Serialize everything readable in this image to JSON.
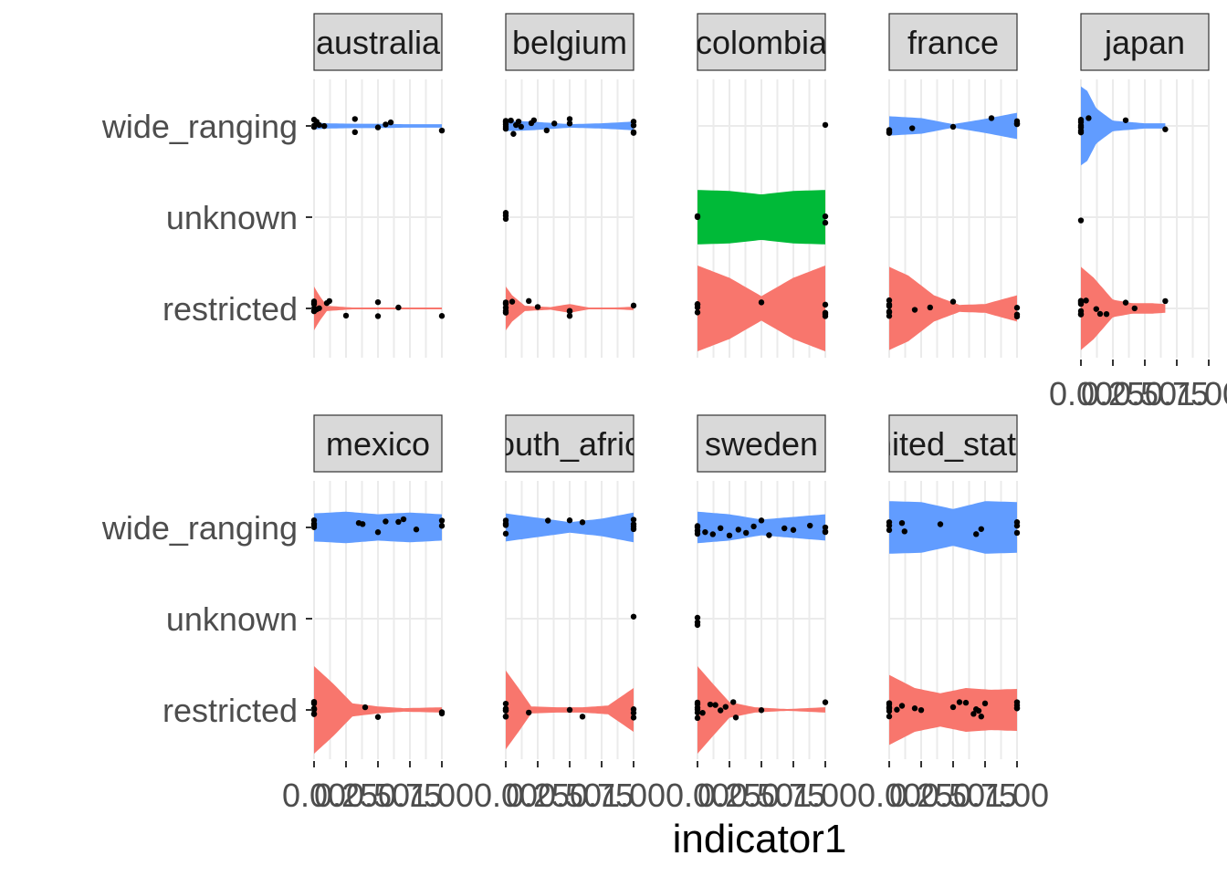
{
  "chart_data": {
    "type": "violin",
    "xlabel": "indicator1",
    "ylabel": "",
    "xlim": [
      0,
      1
    ],
    "x_ticks": [
      "0.00",
      "0.25",
      "0.50",
      "0.75",
      "1.00"
    ],
    "x_tick_values": [
      0,
      0.25,
      0.5,
      0.75,
      1
    ],
    "categories": [
      "wide_ranging",
      "unknown",
      "restricted"
    ],
    "colors": {
      "wide_ranging": "#619CFF",
      "unknown": "#00BA38",
      "restricted": "#F8766D"
    },
    "panels": [
      {
        "name": "australia",
        "wide_ranging": {
          "points": [
            0,
            0,
            0,
            0.02,
            0.04,
            0.08,
            0.32,
            0.32,
            0.5,
            0.56,
            0.6,
            1.0
          ],
          "profile": [
            [
              0,
              0.08
            ],
            [
              0.1,
              0.06
            ],
            [
              0.3,
              0.05
            ],
            [
              0.5,
              0.05
            ],
            [
              0.7,
              0.04
            ],
            [
              1.0,
              0.04
            ]
          ]
        },
        "unknown": {
          "points": [],
          "profile": []
        },
        "restricted": {
          "points": [
            0,
            0,
            0,
            0,
            0,
            0,
            0.02,
            0.04,
            0.1,
            0.12,
            0.25,
            0.5,
            0.5,
            0.66,
            1.0
          ],
          "profile": [
            [
              0,
              0.5
            ],
            [
              0.04,
              0.3
            ],
            [
              0.1,
              0.06
            ],
            [
              0.3,
              0.02
            ],
            [
              0.5,
              0.02
            ],
            [
              0.7,
              0.02
            ],
            [
              1.0,
              0.02
            ]
          ]
        }
      },
      {
        "name": "belgium",
        "wide_ranging": {
          "points": [
            0,
            0,
            0,
            0,
            0,
            0.04,
            0.06,
            0.08,
            0.1,
            0.12,
            0.2,
            0.22,
            0.32,
            0.38,
            0.5,
            0.5,
            1.0,
            1.0,
            1.0,
            1.0
          ],
          "profile": [
            [
              0,
              0.12
            ],
            [
              0.2,
              0.1
            ],
            [
              0.5,
              0.04
            ],
            [
              0.75,
              0.06
            ],
            [
              1.0,
              0.1
            ]
          ]
        },
        "unknown": {
          "points": [
            0,
            0,
            0
          ],
          "profile": []
        },
        "restricted": {
          "points": [
            0,
            0,
            0,
            0,
            0,
            0.05,
            0.18,
            0.25,
            0.5,
            0.5,
            0.5,
            1.0
          ],
          "profile": [
            [
              0,
              0.5
            ],
            [
              0.05,
              0.3
            ],
            [
              0.15,
              0.06
            ],
            [
              0.35,
              0.03
            ],
            [
              0.5,
              0.1
            ],
            [
              0.65,
              0.02
            ],
            [
              0.85,
              0.02
            ],
            [
              1.0,
              0.04
            ]
          ]
        }
      },
      {
        "name": "colombia",
        "wide_ranging": {
          "points": [
            1.0
          ],
          "profile": []
        },
        "unknown": {
          "points": [
            0,
            0,
            1.0,
            1.0
          ],
          "profile": [
            [
              0,
              0.62
            ],
            [
              0.25,
              0.6
            ],
            [
              0.5,
              0.52
            ],
            [
              0.75,
              0.6
            ],
            [
              1.0,
              0.62
            ]
          ]
        },
        "restricted": {
          "points": [
            0,
            0,
            0,
            0,
            0.5,
            1.0,
            1.0,
            1.0,
            1.0
          ],
          "profile": [
            [
              0,
              0.98
            ],
            [
              0.25,
              0.7
            ],
            [
              0.5,
              0.28
            ],
            [
              0.75,
              0.7
            ],
            [
              1.0,
              0.98
            ]
          ]
        }
      },
      {
        "name": "france",
        "wide_ranging": {
          "points": [
            0,
            0,
            0,
            0.18,
            0.5,
            0.8,
            1.0,
            1.0,
            1.0,
            1.0
          ],
          "profile": [
            [
              0,
              0.22
            ],
            [
              0.25,
              0.18
            ],
            [
              0.5,
              0.04
            ],
            [
              0.75,
              0.16
            ],
            [
              1.0,
              0.3
            ]
          ]
        },
        "unknown": {
          "points": [],
          "profile": []
        },
        "restricted": {
          "points": [
            0,
            0,
            0,
            0,
            0,
            0,
            0.2,
            0.32,
            0.5,
            1.0,
            1.0,
            1.0
          ],
          "profile": [
            [
              0,
              0.95
            ],
            [
              0.15,
              0.75
            ],
            [
              0.35,
              0.3
            ],
            [
              0.55,
              0.08
            ],
            [
              0.75,
              0.1
            ],
            [
              1.0,
              0.3
            ]
          ]
        }
      },
      {
        "name": "japan",
        "wide_ranging": {
          "points": [
            0,
            0,
            0,
            0,
            0,
            0,
            0.06,
            0.35,
            0.66
          ],
          "profile": [
            [
              0,
              0.9
            ],
            [
              0.05,
              0.8
            ],
            [
              0.12,
              0.4
            ],
            [
              0.25,
              0.12
            ],
            [
              0.5,
              0.06
            ],
            [
              0.66,
              0.06
            ]
          ]
        },
        "unknown": {
          "points": [
            0
          ],
          "profile": []
        },
        "restricted": {
          "points": [
            0,
            0,
            0,
            0,
            0,
            0,
            0,
            0.04,
            0.12,
            0.15,
            0.2,
            0.35,
            0.42,
            0.66
          ],
          "profile": [
            [
              0,
              0.95
            ],
            [
              0.1,
              0.7
            ],
            [
              0.25,
              0.2
            ],
            [
              0.4,
              0.12
            ],
            [
              0.55,
              0.12
            ],
            [
              0.66,
              0.1
            ]
          ]
        }
      },
      {
        "name": "mexico",
        "wide_ranging": {
          "points": [
            0,
            0,
            0,
            0,
            0.35,
            0.38,
            0.5,
            0.56,
            0.66,
            0.7,
            0.8,
            1.0,
            1.0
          ],
          "profile": [
            [
              0,
              0.32
            ],
            [
              0.25,
              0.36
            ],
            [
              0.5,
              0.3
            ],
            [
              0.75,
              0.34
            ],
            [
              1.0,
              0.3
            ]
          ]
        },
        "unknown": {
          "points": [],
          "profile": []
        },
        "restricted": {
          "points": [
            0,
            0,
            0,
            0,
            0,
            0,
            0,
            0.4,
            0.5,
            1.0,
            1.0
          ],
          "profile": [
            [
              0,
              1.0
            ],
            [
              0.15,
              0.6
            ],
            [
              0.3,
              0.15
            ],
            [
              0.5,
              0.08
            ],
            [
              0.7,
              0.04
            ],
            [
              1.0,
              0.06
            ]
          ]
        }
      },
      {
        "name": "south_africa",
        "wide_ranging": {
          "points": [
            0,
            0,
            0,
            0,
            0.33,
            0.5,
            0.6,
            1.0,
            1.0,
            1.0,
            1.0
          ],
          "profile": [
            [
              0,
              0.32
            ],
            [
              0.25,
              0.22
            ],
            [
              0.5,
              0.12
            ],
            [
              0.75,
              0.2
            ],
            [
              1.0,
              0.34
            ]
          ]
        },
        "unknown": {
          "points": [
            1.0
          ],
          "profile": []
        },
        "restricted": {
          "points": [
            0,
            0,
            0,
            0,
            0,
            0,
            0.18,
            0.5,
            0.6,
            1.0,
            1.0,
            1.0
          ],
          "profile": [
            [
              0,
              0.9
            ],
            [
              0.1,
              0.5
            ],
            [
              0.2,
              0.08
            ],
            [
              0.4,
              0.06
            ],
            [
              0.6,
              0.06
            ],
            [
              0.8,
              0.1
            ],
            [
              1.0,
              0.5
            ]
          ]
        }
      },
      {
        "name": "sweden",
        "wide_ranging": {
          "points": [
            0,
            0,
            0,
            0,
            0.06,
            0.12,
            0.18,
            0.25,
            0.32,
            0.38,
            0.44,
            0.5,
            0.56,
            0.68,
            0.75,
            0.88,
            1.0,
            1.0,
            1.0
          ],
          "profile": [
            [
              0,
              0.36
            ],
            [
              0.25,
              0.3
            ],
            [
              0.5,
              0.18
            ],
            [
              0.75,
              0.24
            ],
            [
              1.0,
              0.3
            ]
          ]
        },
        "unknown": {
          "points": [
            0,
            0,
            0
          ],
          "profile": []
        },
        "restricted": {
          "points": [
            0,
            0,
            0,
            0,
            0,
            0,
            0.04,
            0.1,
            0.14,
            0.18,
            0.22,
            0.28,
            0.3,
            0.5,
            1.0
          ],
          "profile": [
            [
              0,
              1.0
            ],
            [
              0.12,
              0.6
            ],
            [
              0.25,
              0.18
            ],
            [
              0.45,
              0.06
            ],
            [
              0.7,
              0.02
            ],
            [
              1.0,
              0.06
            ]
          ]
        }
      },
      {
        "name": "united_states",
        "wide_ranging": {
          "points": [
            0,
            0,
            0,
            0.1,
            0.12,
            0.4,
            0.68,
            0.72,
            1.0,
            1.0,
            1.0
          ],
          "profile": [
            [
              0,
              0.6
            ],
            [
              0.25,
              0.58
            ],
            [
              0.5,
              0.42
            ],
            [
              0.75,
              0.6
            ],
            [
              1.0,
              0.58
            ]
          ]
        },
        "unknown": {
          "points": [],
          "profile": []
        },
        "restricted": {
          "points": [
            0,
            0,
            0,
            0,
            0,
            0,
            0.06,
            0.1,
            0.2,
            0.25,
            0.5,
            0.55,
            0.6,
            0.66,
            0.68,
            0.7,
            0.72,
            0.75,
            1.0,
            1.0,
            1.0,
            1.0
          ],
          "profile": [
            [
              0,
              0.8
            ],
            [
              0.2,
              0.5
            ],
            [
              0.4,
              0.38
            ],
            [
              0.6,
              0.5
            ],
            [
              0.8,
              0.46
            ],
            [
              1.0,
              0.48
            ]
          ]
        }
      }
    ],
    "strip_labels": [
      "australia",
      "belgium",
      "colombia",
      "france",
      "japan",
      "mexico",
      "south_africa",
      "sweden",
      "united_states"
    ],
    "grid": true,
    "legend": "none"
  }
}
